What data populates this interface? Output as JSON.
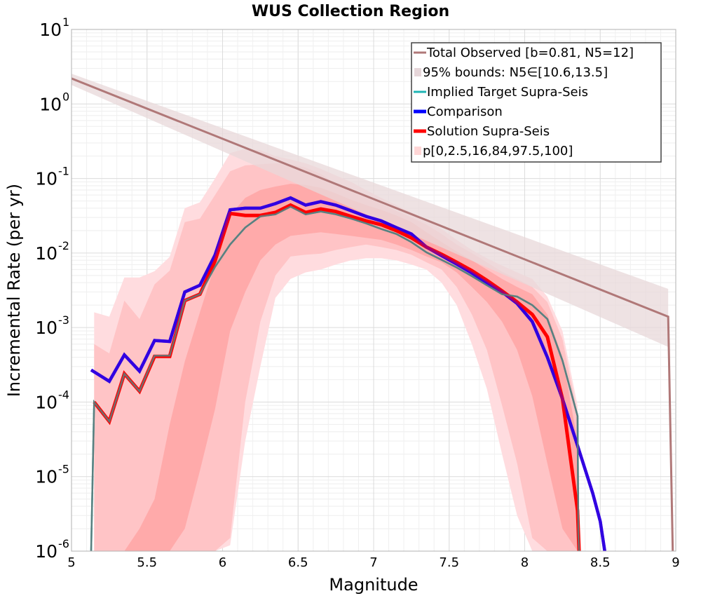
{
  "chart_data": {
    "type": "line",
    "title": "WUS Collection Region",
    "xlabel": "Magnitude",
    "ylabel": "Incremental Rate (per yr)",
    "xlim": [
      5,
      9
    ],
    "ylim_log10": [
      -6,
      1
    ],
    "yscale": "log",
    "grid": true,
    "legend_position": "top-right",
    "x_ticks": [
      "5",
      "5.5",
      "6",
      "6.5",
      "7",
      "7.5",
      "8",
      "8.5",
      "9"
    ],
    "y_ticks": [
      {
        "base": "10",
        "exp": "1",
        "value": 10
      },
      {
        "base": "10",
        "exp": "0",
        "value": 1
      },
      {
        "base": "10",
        "exp": "-1",
        "value": 0.1
      },
      {
        "base": "10",
        "exp": "-2",
        "value": 0.01
      },
      {
        "base": "10",
        "exp": "-3",
        "value": 0.001
      },
      {
        "base": "10",
        "exp": "-4",
        "value": 0.0001
      },
      {
        "base": "10",
        "exp": "-5",
        "value": 1e-05
      },
      {
        "base": "10",
        "exp": "-6",
        "value": 1e-06
      }
    ],
    "legend": [
      {
        "label": "Total Observed [b=0.81, N5=12]",
        "color": "#b07878",
        "kind": "line"
      },
      {
        "label": "95% bounds: N5∈[10.6,13.5]",
        "color": "#e6d6d9",
        "kind": "fill"
      },
      {
        "label": "Implied Target Supra-Seis",
        "color": "#1fb5b5",
        "kind": "line"
      },
      {
        "label": "Comparison",
        "color": "#0000ff",
        "kind": "line"
      },
      {
        "label": "Solution Supra-Seis",
        "color": "#ff0000",
        "kind": "line"
      },
      {
        "label": "p[0,2.5,16,84,97.5,100]",
        "color": "#ffd6d6",
        "kind": "fill"
      }
    ],
    "series": [
      {
        "name": "Total Observed [b=0.81, N5=12]",
        "color": "#b07878",
        "x": [
          5.0,
          8.95,
          8.95,
          8.98
        ],
        "y": [
          2.2,
          0.0014,
          0.0014,
          1e-06
        ]
      },
      {
        "name": "95% bounds lower",
        "x": [
          5.0,
          8.95
        ],
        "y": [
          1.8,
          0.00055
        ]
      },
      {
        "name": "95% bounds upper",
        "x": [
          5.0,
          8.95
        ],
        "y": [
          2.55,
          0.0033
        ]
      },
      {
        "name": "Implied Target Supra-Seis",
        "color": "#1fb5b5",
        "x": [
          5.13,
          5.15,
          5.25,
          5.35,
          5.45,
          5.55,
          5.65,
          5.75,
          5.85,
          5.95,
          6.05,
          6.15,
          6.25,
          6.35,
          6.45,
          6.55,
          6.65,
          6.75,
          6.85,
          6.95,
          7.05,
          7.15,
          7.25,
          7.35,
          7.45,
          7.55,
          7.65,
          7.75,
          7.85,
          7.95,
          8.05,
          8.15,
          8.25,
          8.35,
          8.355,
          8.36
        ],
        "y": [
          1e-06,
          0.0001,
          5.5e-05,
          0.00024,
          0.00014,
          0.00042,
          0.00042,
          0.0023,
          0.0028,
          0.0065,
          0.013,
          0.022,
          0.031,
          0.033,
          0.042,
          0.033,
          0.036,
          0.033,
          0.029,
          0.025,
          0.021,
          0.018,
          0.014,
          0.0102,
          0.0081,
          0.0064,
          0.0049,
          0.0037,
          0.0028,
          0.0026,
          0.002,
          0.0013,
          0.00036,
          6.5e-05,
          1.8e-06,
          1e-06
        ]
      },
      {
        "name": "Comparison",
        "color": "#0000ff",
        "x": [
          5.13,
          5.25,
          5.35,
          5.45,
          5.55,
          5.65,
          5.75,
          5.85,
          5.95,
          6.05,
          6.15,
          6.25,
          6.35,
          6.45,
          6.55,
          6.65,
          6.75,
          6.85,
          6.95,
          7.05,
          7.15,
          7.25,
          7.35,
          7.45,
          7.55,
          7.65,
          7.75,
          7.85,
          7.95,
          8.05,
          8.15,
          8.25,
          8.35,
          8.45,
          8.5,
          8.53
        ],
        "y": [
          0.00027,
          0.00019,
          0.00043,
          0.00026,
          0.00067,
          0.00065,
          0.003,
          0.0037,
          0.0094,
          0.038,
          0.04,
          0.04,
          0.046,
          0.055,
          0.044,
          0.049,
          0.044,
          0.037,
          0.031,
          0.027,
          0.022,
          0.018,
          0.012,
          0.0092,
          0.0071,
          0.0054,
          0.004,
          0.003,
          0.0021,
          0.0012,
          0.0004,
          0.00011,
          2.6e-05,
          6e-06,
          2.5e-06,
          1e-06
        ]
      },
      {
        "name": "Solution Supra-Seis",
        "color": "#ff0000",
        "x": [
          5.15,
          5.25,
          5.35,
          5.45,
          5.55,
          5.65,
          5.75,
          5.85,
          5.95,
          6.05,
          6.15,
          6.25,
          6.35,
          6.45,
          6.55,
          6.65,
          6.75,
          6.85,
          6.95,
          7.05,
          7.15,
          7.25,
          7.35,
          7.45,
          7.55,
          7.65,
          7.75,
          7.85,
          7.95,
          8.05,
          8.15,
          8.25,
          8.35,
          8.36
        ],
        "y": [
          0.0001,
          5.5e-05,
          0.00024,
          0.00014,
          0.00041,
          0.00041,
          0.0023,
          0.0028,
          0.0078,
          0.034,
          0.032,
          0.032,
          0.035,
          0.044,
          0.035,
          0.039,
          0.036,
          0.031,
          0.027,
          0.024,
          0.02,
          0.016,
          0.012,
          0.0096,
          0.0075,
          0.0058,
          0.0043,
          0.0031,
          0.0022,
          0.0015,
          0.00075,
          0.00011,
          3.5e-06,
          1e-06
        ]
      }
    ],
    "percentile_bands": {
      "x": [
        5.15,
        5.25,
        5.35,
        5.45,
        5.55,
        5.65,
        5.75,
        5.85,
        5.95,
        6.05,
        6.15,
        6.25,
        6.35,
        6.45,
        6.55,
        6.65,
        6.75,
        6.85,
        6.95,
        7.05,
        7.15,
        7.25,
        7.35,
        7.45,
        7.55,
        7.65,
        7.75,
        7.85,
        7.95,
        8.05,
        8.15,
        8.25,
        8.35,
        8.36
      ],
      "p0": [
        1e-06,
        1e-06,
        1e-06,
        1e-06,
        1e-06,
        1e-06,
        1e-06,
        1e-06,
        1e-06,
        1.2e-06,
        3e-05,
        0.0003,
        0.0025,
        0.0045,
        0.0055,
        0.006,
        0.007,
        0.008,
        0.0085,
        0.0085,
        0.008,
        0.007,
        0.006,
        0.004,
        0.002,
        0.0006,
        0.00015,
        2e-05,
        3e-06,
        1e-06,
        1e-06,
        1e-06,
        1e-06,
        1e-06
      ],
      "p2_5": [
        1e-06,
        1e-06,
        1e-06,
        1e-06,
        1e-06,
        1e-06,
        1e-06,
        1e-06,
        1e-06,
        1.5e-06,
        0.0001,
        0.0012,
        0.005,
        0.009,
        0.0095,
        0.0098,
        0.011,
        0.012,
        0.013,
        0.012,
        0.011,
        0.0095,
        0.0075,
        0.006,
        0.0035,
        0.0015,
        0.0005,
        9e-05,
        1.5e-05,
        1.5e-06,
        1e-06,
        1e-06,
        1e-06,
        1e-06
      ],
      "p16": [
        1e-06,
        1e-06,
        1e-06,
        1e-06,
        1e-06,
        1e-06,
        2e-06,
        1.2e-05,
        8e-05,
        0.0009,
        0.003,
        0.008,
        0.013,
        0.017,
        0.018,
        0.019,
        0.018,
        0.017,
        0.016,
        0.015,
        0.013,
        0.011,
        0.009,
        0.0075,
        0.0055,
        0.0035,
        0.0022,
        0.0012,
        0.0005,
        0.00012,
        1.5e-05,
        2e-06,
        1e-06,
        1e-06
      ],
      "p84": [
        1e-06,
        1e-06,
        1e-06,
        2e-06,
        5e-06,
        5e-05,
        0.00035,
        0.0016,
        0.007,
        0.032,
        0.055,
        0.07,
        0.078,
        0.085,
        0.082,
        0.075,
        0.063,
        0.052,
        0.044,
        0.038,
        0.032,
        0.026,
        0.019,
        0.014,
        0.0105,
        0.008,
        0.006,
        0.0045,
        0.0035,
        0.0028,
        0.0015,
        0.0004,
        3e-05,
        1e-06
      ],
      "p97_5": [
        0.0006,
        0.00045,
        0.0023,
        0.0013,
        0.0038,
        0.0058,
        0.026,
        0.029,
        0.06,
        0.125,
        0.15,
        0.155,
        0.16,
        0.155,
        0.14,
        0.115,
        0.085,
        0.072,
        0.058,
        0.046,
        0.037,
        0.03,
        0.024,
        0.018,
        0.013,
        0.01,
        0.0075,
        0.0056,
        0.0045,
        0.0035,
        0.0022,
        0.0007,
        7e-05,
        1e-06
      ],
      "p100": [
        0.0016,
        0.0014,
        0.0047,
        0.0047,
        0.0057,
        0.0089,
        0.04,
        0.048,
        0.1,
        0.22,
        0.25,
        0.24,
        0.2,
        0.18,
        0.16,
        0.135,
        0.11,
        0.09,
        0.07,
        0.055,
        0.044,
        0.035,
        0.028,
        0.021,
        0.015,
        0.011,
        0.0085,
        0.0068,
        0.0055,
        0.0045,
        0.0026,
        0.0009,
        9e-05,
        1e-06
      ]
    },
    "colors": {
      "band_outer": "#ffdcdf",
      "band_mid": "#ffc4c6",
      "band_inner": "#ffaaaa",
      "bounds_fill": "#e8d8da",
      "solution_comparison_overlap": "#5a00c8",
      "target_under_solution": "#607a7a"
    }
  }
}
